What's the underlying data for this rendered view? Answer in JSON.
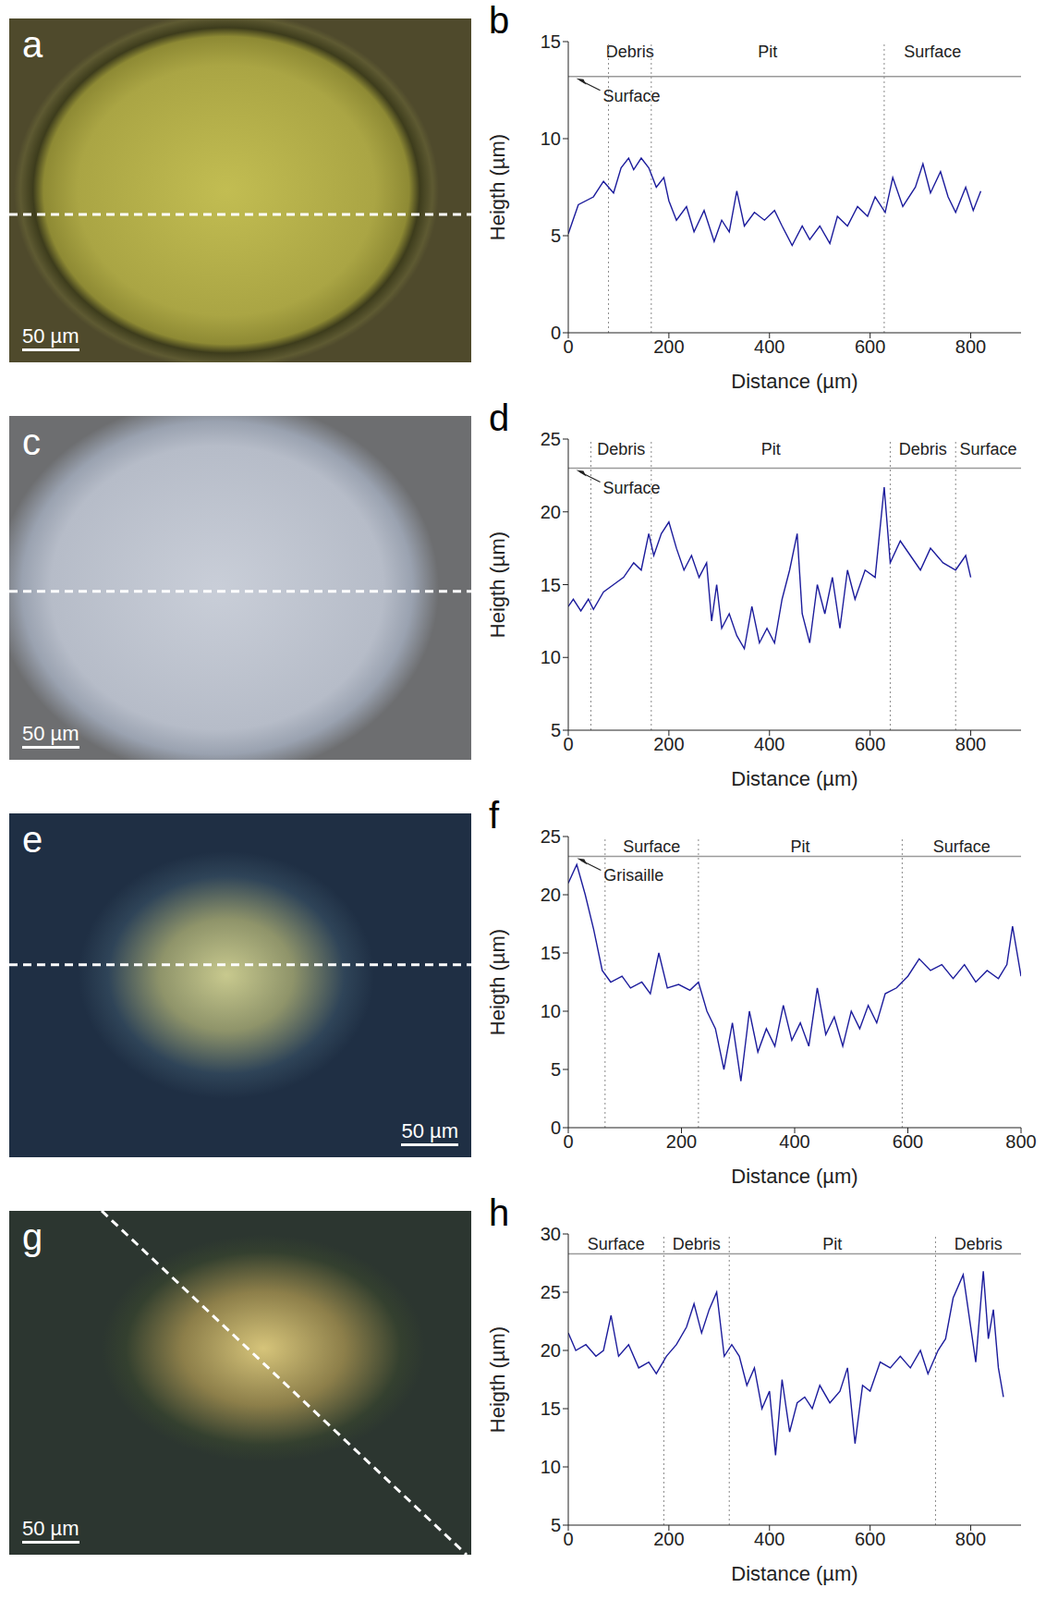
{
  "images": [
    {
      "panel": "a",
      "scale_bar": "50 µm"
    },
    {
      "panel": "c",
      "scale_bar": "50 µm"
    },
    {
      "panel": "e",
      "scale_bar": "50 µm"
    },
    {
      "panel": "g",
      "scale_bar": "50 µm"
    }
  ],
  "chart_data": [
    {
      "panel": "b",
      "type": "line",
      "color": "#1c1c9c",
      "xlabel": "Distance (µm)",
      "ylabel": "Heigth (µm)",
      "xlim": [
        0,
        900
      ],
      "xticks": [
        0,
        200,
        400,
        600,
        800
      ],
      "ylim": [
        0,
        15
      ],
      "yticks": [
        0,
        5,
        10,
        15
      ],
      "hline": 13.2,
      "regions": [
        {
          "label": "Debris",
          "from": 80,
          "to": 165
        },
        {
          "label": "Pit",
          "from": 165,
          "to": 628
        },
        {
          "label": "Surface",
          "from": 628,
          "to": 820
        }
      ],
      "annotation": {
        "text": "Surface",
        "x": 12,
        "y": 13.2
      },
      "x": [
        0,
        20,
        50,
        70,
        90,
        105,
        120,
        130,
        145,
        160,
        175,
        190,
        200,
        215,
        235,
        250,
        270,
        290,
        305,
        320,
        335,
        350,
        370,
        390,
        410,
        425,
        445,
        465,
        480,
        500,
        520,
        535,
        555,
        575,
        595,
        610,
        630,
        645,
        665,
        690,
        705,
        720,
        740,
        755,
        770,
        790,
        805,
        820
      ],
      "values": [
        5.1,
        6.6,
        7.0,
        7.8,
        7.2,
        8.5,
        9.0,
        8.4,
        9.0,
        8.5,
        7.5,
        8.0,
        6.8,
        5.8,
        6.5,
        5.2,
        6.3,
        4.7,
        5.8,
        5.2,
        7.3,
        5.5,
        6.2,
        5.8,
        6.3,
        5.5,
        4.5,
        5.5,
        4.8,
        5.5,
        4.6,
        6.0,
        5.5,
        6.5,
        6.0,
        7.0,
        6.2,
        8.0,
        6.5,
        7.5,
        8.7,
        7.2,
        8.3,
        7.0,
        6.2,
        7.5,
        6.3,
        7.3
      ]
    },
    {
      "panel": "d",
      "type": "line",
      "color": "#1c1c9c",
      "xlabel": "Distance (µm)",
      "ylabel": "Heigth (µm)",
      "xlim": [
        0,
        900
      ],
      "xticks": [
        0,
        200,
        400,
        600,
        800
      ],
      "ylim": [
        5,
        25
      ],
      "yticks": [
        5,
        10,
        15,
        20,
        25
      ],
      "hline": 23,
      "regions": [
        {
          "label": "Debris",
          "from": 45,
          "to": 165
        },
        {
          "label": "Pit",
          "from": 165,
          "to": 640
        },
        {
          "label": "Debris",
          "from": 640,
          "to": 770
        },
        {
          "label": "Surface",
          "from": 770,
          "to": 900
        }
      ],
      "annotation": {
        "text": "Surface",
        "x": 12,
        "y": 23
      },
      "x": [
        0,
        10,
        25,
        40,
        50,
        70,
        90,
        110,
        130,
        145,
        160,
        170,
        185,
        200,
        215,
        230,
        245,
        260,
        275,
        285,
        295,
        305,
        320,
        335,
        350,
        365,
        380,
        395,
        410,
        425,
        440,
        455,
        465,
        480,
        495,
        510,
        525,
        540,
        555,
        570,
        590,
        610,
        628,
        640,
        660,
        680,
        700,
        720,
        745,
        770,
        790,
        800
      ],
      "values": [
        13.5,
        14.0,
        13.2,
        14.0,
        13.3,
        14.5,
        15.0,
        15.5,
        16.5,
        16.0,
        18.5,
        17.0,
        18.5,
        19.3,
        17.5,
        16.0,
        17.0,
        15.5,
        16.5,
        12.5,
        15.0,
        12.0,
        13.0,
        11.5,
        10.6,
        13.5,
        11.0,
        12.0,
        11.0,
        14.0,
        16.0,
        18.5,
        13.0,
        11.0,
        15.0,
        13.0,
        15.5,
        12.0,
        16.0,
        14.0,
        16.0,
        15.5,
        21.7,
        16.5,
        18.0,
        17.0,
        16.0,
        17.5,
        16.5,
        16.0,
        17.0,
        15.5
      ]
    },
    {
      "panel": "f",
      "type": "line",
      "color": "#1c1c9c",
      "xlabel": "Distance (µm)",
      "ylabel": "Heigth (µm)",
      "xlim": [
        0,
        800
      ],
      "xticks": [
        0,
        200,
        400,
        600,
        800
      ],
      "ylim": [
        0,
        25
      ],
      "yticks": [
        0,
        5,
        10,
        15,
        20,
        25
      ],
      "hline": 23.3,
      "regions": [
        {
          "label": "Surface",
          "from": 65,
          "to": 230
        },
        {
          "label": "Pit",
          "from": 230,
          "to": 590
        },
        {
          "label": "Surface",
          "from": 590,
          "to": 800
        }
      ],
      "annotation": {
        "text": "Grisaille",
        "x": 12,
        "y": 23.3
      },
      "x": [
        0,
        15,
        30,
        45,
        60,
        75,
        95,
        110,
        130,
        145,
        160,
        175,
        195,
        215,
        230,
        245,
        260,
        275,
        290,
        305,
        320,
        335,
        350,
        365,
        380,
        395,
        410,
        425,
        440,
        455,
        470,
        485,
        500,
        515,
        530,
        545,
        560,
        580,
        600,
        620,
        640,
        660,
        680,
        700,
        720,
        740,
        760,
        775,
        785,
        800
      ],
      "values": [
        21.0,
        22.6,
        20.0,
        17.0,
        13.5,
        12.5,
        13.0,
        12.0,
        12.5,
        11.5,
        15.0,
        12.0,
        12.3,
        11.8,
        12.5,
        10.0,
        8.5,
        5.0,
        9.0,
        4.0,
        10.0,
        6.5,
        8.5,
        7.0,
        10.5,
        7.5,
        9.0,
        7.0,
        12.0,
        8.0,
        9.5,
        7.0,
        10.0,
        8.5,
        10.5,
        9.0,
        11.5,
        12.0,
        13.0,
        14.5,
        13.5,
        14.0,
        12.8,
        14.0,
        12.5,
        13.5,
        12.8,
        14.0,
        17.3,
        13.0
      ]
    },
    {
      "panel": "h",
      "type": "line",
      "color": "#1c1c9c",
      "xlabel": "Distance (µm)",
      "ylabel": "Heigth (µm)",
      "xlim": [
        0,
        900
      ],
      "xticks": [
        0,
        200,
        400,
        600,
        800
      ],
      "ylim": [
        5,
        30
      ],
      "yticks": [
        5,
        10,
        15,
        20,
        25,
        30
      ],
      "hline": 28.3,
      "regions": [
        {
          "label": "Surface",
          "from": 0,
          "to": 190
        },
        {
          "label": "Debris",
          "from": 190,
          "to": 320
        },
        {
          "label": "Pit",
          "from": 320,
          "to": 730
        },
        {
          "label": "Debris",
          "from": 730,
          "to": 900
        }
      ],
      "x": [
        0,
        15,
        35,
        55,
        70,
        85,
        100,
        120,
        140,
        160,
        175,
        195,
        215,
        235,
        250,
        265,
        280,
        295,
        310,
        325,
        340,
        355,
        370,
        385,
        400,
        412,
        425,
        440,
        455,
        470,
        485,
        500,
        520,
        540,
        555,
        570,
        585,
        600,
        620,
        640,
        660,
        680,
        700,
        715,
        735,
        750,
        765,
        785,
        800,
        810,
        825,
        835,
        845,
        855,
        865
      ],
      "values": [
        21.5,
        20.0,
        20.5,
        19.5,
        20.0,
        23.0,
        19.5,
        20.5,
        18.5,
        19.0,
        18.0,
        19.5,
        20.5,
        22.0,
        24.0,
        21.5,
        23.5,
        25.0,
        19.5,
        20.5,
        19.5,
        17.0,
        18.5,
        15.0,
        16.5,
        11.0,
        17.5,
        13.0,
        15.5,
        16.0,
        15.0,
        17.0,
        15.5,
        16.5,
        18.5,
        12.0,
        17.0,
        16.5,
        19.0,
        18.5,
        19.5,
        18.5,
        20.0,
        18.0,
        20.0,
        21.0,
        24.5,
        26.5,
        22.0,
        19.0,
        26.8,
        21.0,
        23.5,
        18.5,
        16.0
      ]
    }
  ]
}
